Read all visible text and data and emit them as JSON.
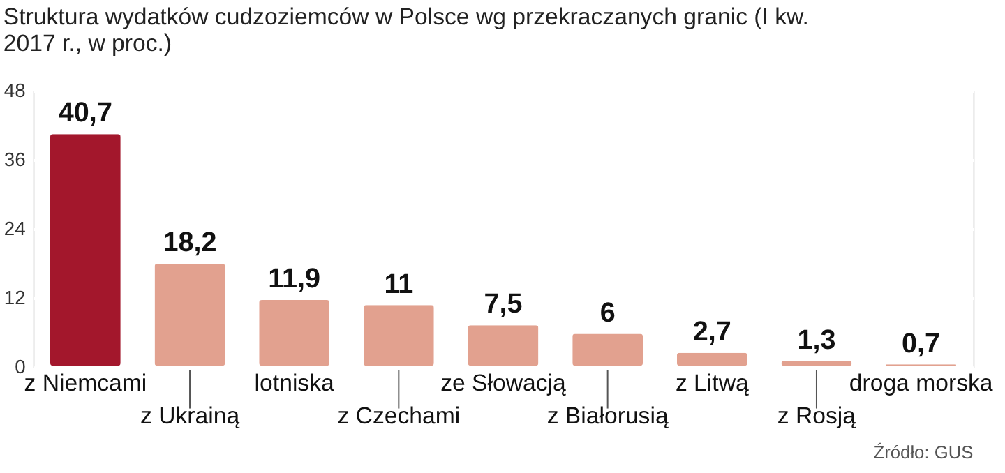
{
  "chart_data": {
    "type": "bar",
    "title": [
      "Struktura wydatków cudzoziemców w Polsce wg przekraczanych granic (I kw.",
      "2017 r., w proc.)"
    ],
    "categories": [
      "z Niemcami",
      "z Ukrainą",
      "lotniska",
      "z Czechami",
      "ze Słowacją",
      "z Białorusią",
      "z Litwą",
      "z Rosją",
      "droga morska"
    ],
    "values": [
      40.7,
      18.2,
      11.9,
      11,
      7.5,
      6,
      2.7,
      1.3,
      0.7
    ],
    "value_labels": [
      "40,7",
      "18,2",
      "11,9",
      "11",
      "7,5",
      "6",
      "2,7",
      "1,3",
      "0,7"
    ],
    "colors": [
      "#a3172c",
      "#e2a18f",
      "#e2a18f",
      "#e2a18f",
      "#e2a18f",
      "#e2a18f",
      "#e2a18f",
      "#e2a18f",
      "#e2a18f"
    ],
    "ylim": [
      0,
      48
    ],
    "yticks": [
      0,
      12,
      24,
      36,
      48
    ],
    "grid": "y",
    "annotations": [
      "Źródło: GUS"
    ]
  }
}
